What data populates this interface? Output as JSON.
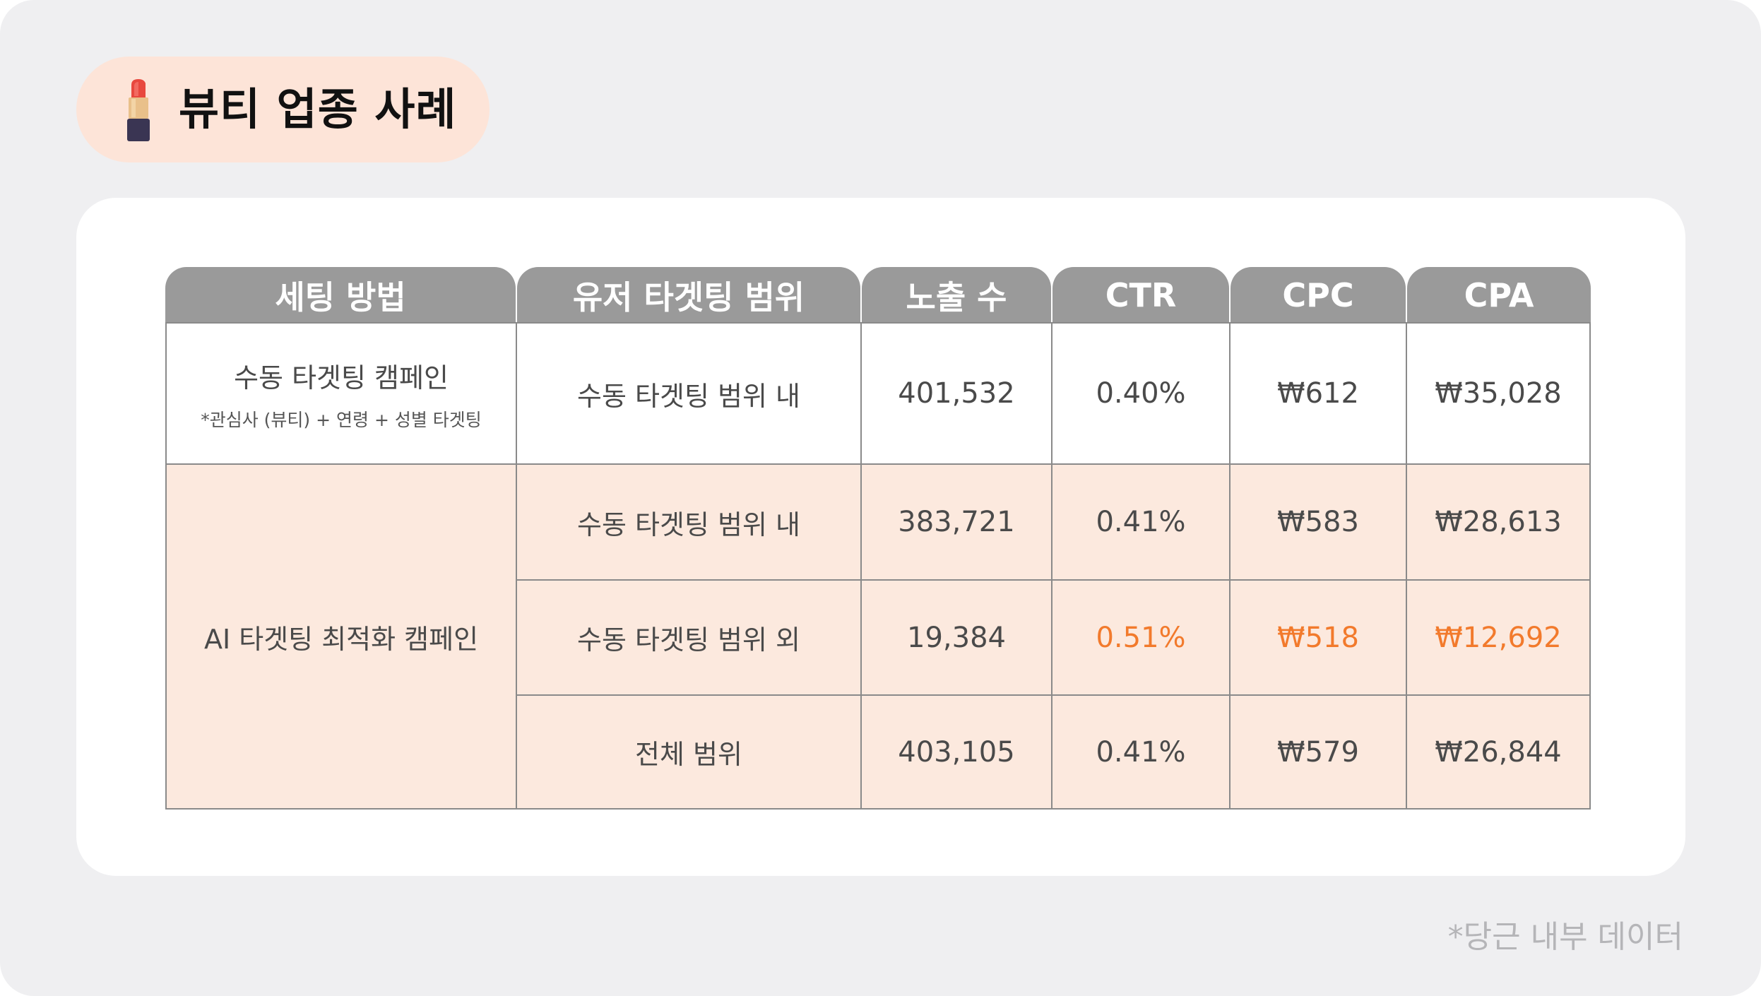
{
  "title": "뷰티 업종 사례",
  "icons": {
    "title_icon": "lipstick-icon"
  },
  "colors": {
    "header_bg": "#9a9a9a",
    "highlight": "#f27a2c",
    "peach_bg": "#fce9de",
    "pill_bg": "#fde4d8"
  },
  "table": {
    "headers": [
      "세팅 방법",
      "유저 타겟팅 범위",
      "노출 수",
      "CTR",
      "CPC",
      "CPA"
    ],
    "manual": {
      "label": "수동 타겟팅 캠페인",
      "note": "*관심사 (뷰티) + 연령 + 성별 타겟팅",
      "row": {
        "range": "수동 타겟팅 범위 내",
        "impressions": "401,532",
        "ctr": "0.40%",
        "cpc": "₩612",
        "cpa": "₩35,028"
      }
    },
    "ai": {
      "label": "AI 타겟팅 최적화 캠페인",
      "rows": [
        {
          "range": "수동 타겟팅 범위 내",
          "impressions": "383,721",
          "ctr": "0.41%",
          "cpc": "₩583",
          "cpa": "₩28,613"
        },
        {
          "range": "수동 타겟팅 범위 외",
          "impressions": "19,384",
          "ctr": "0.51%",
          "cpc": "₩518",
          "cpa": "₩12,692"
        },
        {
          "range": "전체 범위",
          "impressions": "403,105",
          "ctr": "0.41%",
          "cpc": "₩579",
          "cpa": "₩26,844"
        }
      ]
    }
  },
  "footnote": "*당근 내부 데이터"
}
